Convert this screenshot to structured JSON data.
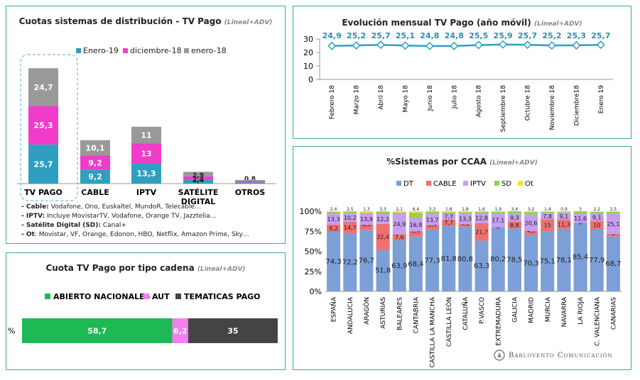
{
  "brand": {
    "logo_text": "Barlovento Comunicación"
  },
  "chart_data": [
    {
      "id": "cuotas",
      "type": "bar",
      "stacked": true,
      "title": "Cuotas sistemas de distribución - TV Pago",
      "subtitle": "(Lineal+ADV)",
      "categories": [
        "TV PAGO",
        "CABLE",
        "IPTV",
        "SATÉLITE DIGITAL",
        "OTROS"
      ],
      "series": [
        {
          "name": "Enero-19",
          "color": "#2f9fc0",
          "values": [
            25.7,
            9.2,
            13.3,
            2.4,
            0.8
          ]
        },
        {
          "name": "diciembre-18",
          "color": "#f03cc8",
          "values": [
            25.3,
            9.2,
            13,
            2.4,
            0.8
          ]
        },
        {
          "name": "enero-18",
          "color": "#999999",
          "values": [
            24.7,
            10.1,
            11,
            2.9,
            0.8
          ]
        }
      ],
      "value_labels": [
        [
          "25,7",
          "25,3",
          "24,7"
        ],
        [
          "9,2",
          "9,2",
          "10,1"
        ],
        [
          "13,3",
          "13",
          "11"
        ],
        [
          "2,4",
          "2,4",
          "2,9"
        ],
        [
          "",
          "0,8",
          ""
        ]
      ],
      "legend": "top-right",
      "notes": [
        {
          "label": "- Cable:",
          "text": " Vodafone, Ono, Euskaltel, MundoR, Telecable…"
        },
        {
          "label": "- IPTV:",
          "text": " Incluye MovistarTV, Vodafone, Orange TV, Jazztelia…"
        },
        {
          "label": "- Satélite Digital (SD):",
          "text": " Canal+"
        },
        {
          "label": "- Ot",
          "text": ": Movistar, VF, Orange, Edonon, HBO, Netflix, Amazon Prime, Sky…"
        }
      ]
    },
    {
      "id": "evolucion",
      "type": "line",
      "title": "Evolución mensual TV Pago (año móvil)",
      "subtitle": "(Lineal+ADV)",
      "x": [
        "Febrero 18",
        "Marzo 18",
        "Abril 18",
        "Mayo 18",
        "Junio 18",
        "Julio 18",
        "Agosto 18",
        "Septiembre 18",
        "Octubre 18",
        "Noviembre 18",
        "Diciembre18",
        "Enero 19"
      ],
      "values": [
        24.9,
        25.2,
        25.7,
        25.1,
        24.8,
        24.8,
        25.5,
        25.9,
        25.7,
        25.2,
        25.3,
        25.7
      ],
      "value_labels": [
        "24,9",
        "25,2",
        "25,7",
        "25,1",
        "24,8",
        "24,8",
        "25,5",
        "25,9",
        "25,7",
        "25,2",
        "25,3",
        "25,7"
      ],
      "yticks": [
        "0",
        "10",
        "20",
        "30"
      ],
      "ylim": [
        0,
        30
      ],
      "color": "#2f9fc0"
    },
    {
      "id": "tipo_cadena",
      "type": "bar",
      "orientation": "horizontal",
      "stacked": true,
      "title": "Cuota TV Pago por tipo cadena",
      "subtitle": "(Lineal+ADV)",
      "category": "%",
      "series": [
        {
          "name": "ABIERTO NACIONALES",
          "color": "#1db954",
          "value": 58.7,
          "label": "58,7"
        },
        {
          "name": "AUT",
          "color": "#f57ef0",
          "value": 6.2,
          "label": "6,2"
        },
        {
          "name": "TEMATICAS PAGO",
          "color": "#444444",
          "value": 35,
          "label": "35"
        }
      ],
      "legend": "top"
    },
    {
      "id": "ccaa",
      "type": "bar",
      "stacked": true,
      "percent": true,
      "title": "%Sistemas por CCAA",
      "subtitle": "(Lineal+ADV)",
      "categories": [
        "ESPAÑA",
        "ANDALUCIA",
        "ARAGÓN",
        "ASTURIAS",
        "BALEARES",
        "CANTABRIA",
        "CASTILLA LA MANCHA",
        "CASTILLA LEÓN",
        "CATALUÑA",
        "P.VASCO",
        "EXTREMADURA",
        "GALICIA",
        "MADRID",
        "MURCIA",
        "NAVARRA",
        "LA RIOJA",
        "C. VALENCIANA",
        "CANARIAS"
      ],
      "yticks": [
        "0%",
        "25%",
        "50%",
        "75%",
        "100%"
      ],
      "series": [
        {
          "name": "DT",
          "color": "#7b9fd6",
          "values": [
            74.3,
            72.2,
            76.7,
            51.8,
            63.9,
            68.4,
            77.3,
            81.8,
            80.8,
            63.3,
            80.2,
            78.5,
            70.3,
            75.1,
            78.1,
            85.4,
            77.9,
            68.7
          ],
          "labels": [
            "74,3",
            "72,2",
            "76,7",
            "51,8",
            "63,9",
            "68,4",
            "77,3",
            "81,8",
            "80,8",
            "63,3",
            "80,2",
            "78,5",
            "70,3",
            "75,1",
            "78,1",
            "85,4",
            "77,9",
            "68,7"
          ]
        },
        {
          "name": "CABLE",
          "color": "#ef7070",
          "values": [
            9.2,
            14.7,
            6.5,
            32.4,
            7.6,
            6.4,
            5.4,
            7.7,
            3.1,
            21.7,
            0,
            8.8,
            4.9,
            15,
            11.3,
            0,
            10,
            3
          ],
          "labels": [
            "9,2",
            "14,7",
            "6,5",
            "32,4",
            "7,6",
            "6,4",
            "5,4",
            "7,7",
            "3,1",
            "21,7",
            "0",
            "8,8",
            "4,9",
            "15",
            "11,3",
            "0",
            "10",
            "3"
          ]
        },
        {
          "name": "IPTV",
          "color": "#c79ef0",
          "values": [
            13.3,
            10.2,
            13.9,
            12.2,
            24.9,
            16.8,
            13.7,
            7.7,
            13.3,
            12.8,
            17.1,
            9.3,
            20.6,
            7.8,
            9.1,
            11.6,
            9.1,
            25.1
          ],
          "labels": [
            "13,3",
            "10,2",
            "13,9",
            "12,2",
            "24,9",
            "16,8",
            "13,7",
            "7,7",
            "13,3",
            "12,8",
            "17,1",
            "9,3",
            "20,6",
            "7,8",
            "9,1",
            "11,6",
            "9,1",
            "25,1"
          ]
        },
        {
          "name": "SD",
          "color": "#92d050",
          "values": [
            2.4,
            2.5,
            1.3,
            3.3,
            2.1,
            6.4,
            3.2,
            1.8,
            1.8,
            1.6,
            1.9,
            3.4,
            3.2,
            1.4,
            0.9,
            3,
            2.2,
            2.5
          ],
          "labels": [
            "2,4",
            "2,5",
            "1,3",
            "3,3",
            "2,1",
            "6,4",
            "3,2",
            "1,8",
            "1,8",
            "1,6",
            "1,9",
            "3,4",
            "3,2",
            "1,4",
            "0,9",
            "3",
            "2,2",
            "2,5"
          ]
        },
        {
          "name": "Ot",
          "color": "#ffd93d",
          "values": [
            0.8,
            0.4,
            1.6,
            0.3,
            1.5,
            2,
            0.4,
            1,
            1,
            0.6,
            0.8,
            0,
            1,
            0.7,
            0.6,
            0,
            0.8,
            0.7
          ]
        }
      ],
      "legend": "top"
    }
  ]
}
